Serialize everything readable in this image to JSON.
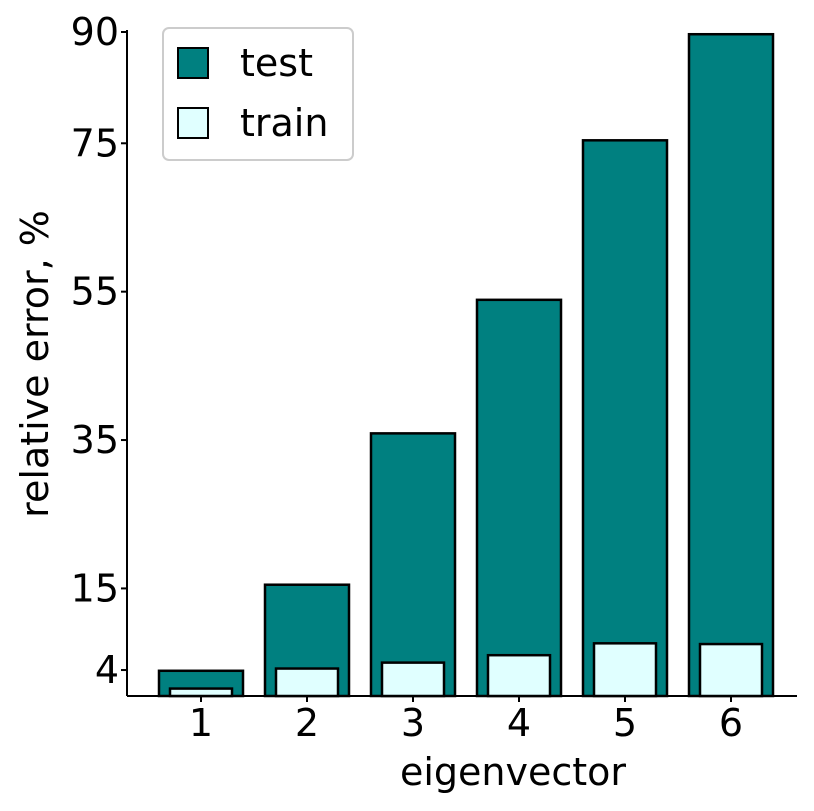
{
  "chart_data": {
    "type": "bar",
    "xlabel": "eigenvector",
    "ylabel": "relative error, %",
    "categories": [
      "1",
      "2",
      "3",
      "4",
      "5",
      "6"
    ],
    "yticks": [
      4,
      15,
      35,
      55,
      75,
      90
    ],
    "ylim": [
      0.5,
      90
    ],
    "series": [
      {
        "name": "test",
        "values": [
          3.9,
          15.5,
          35.9,
          53.9,
          75.4,
          89.7
        ],
        "color": "#008080"
      },
      {
        "name": "train",
        "values": [
          1.5,
          4.2,
          5.0,
          6.0,
          7.6,
          7.5
        ],
        "color": "#e0ffff"
      }
    ],
    "legend_position": "top-left",
    "grid": false,
    "bar_edge_color": "#000000"
  }
}
